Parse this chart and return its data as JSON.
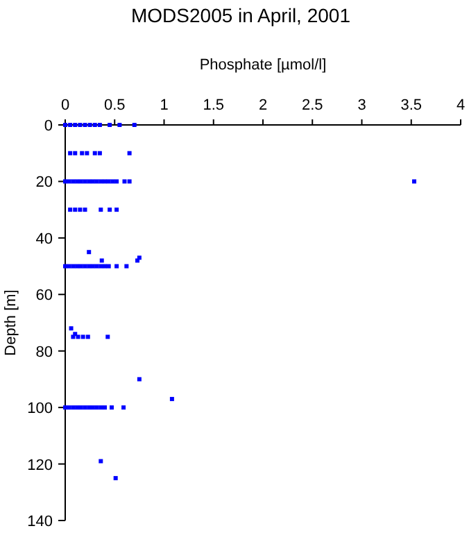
{
  "chart_data": {
    "type": "scatter",
    "title": "MODS2005 in April, 2001",
    "xlabel": "Phosphate [µmol/l]",
    "ylabel": "Depth [m]",
    "xlim": [
      0,
      4
    ],
    "xticks": [
      0,
      0.5,
      1,
      1.5,
      2,
      2.5,
      3,
      3.5,
      4
    ],
    "ylim": [
      140,
      0
    ],
    "yticks": [
      0,
      20,
      40,
      60,
      80,
      100,
      120,
      140
    ],
    "marker": "square",
    "grid": false,
    "series": [
      {
        "color": "#0000ff",
        "x": [
          0,
          0.05,
          0.1,
          0.15,
          0.2,
          0.25,
          0.3,
          0.35,
          0.45,
          0.55,
          0.7,
          0.05,
          0.1,
          0.17,
          0.22,
          0.3,
          0.35,
          0.65,
          0,
          0.04,
          0.08,
          0.12,
          0.16,
          0.2,
          0.24,
          0.28,
          0.32,
          0.36,
          0.4,
          0.44,
          0.48,
          0.52,
          0.6,
          0.65,
          3.53,
          0.05,
          0.1,
          0.15,
          0.2,
          0.36,
          0.45,
          0.52,
          0.24,
          0.37,
          0.73,
          0.75,
          0,
          0.04,
          0.08,
          0.12,
          0.16,
          0.2,
          0.24,
          0.28,
          0.32,
          0.36,
          0.4,
          0.44,
          0.52,
          0.62,
          0.06,
          0.1,
          0.08,
          0.13,
          0.18,
          0.23,
          0.43,
          0.75,
          1.08,
          0,
          0.04,
          0.08,
          0.12,
          0.16,
          0.2,
          0.24,
          0.28,
          0.32,
          0.36,
          0.4,
          0.47,
          0.59,
          0.36,
          0.51
        ],
        "values": [
          0,
          0,
          0,
          0,
          0,
          0,
          0,
          0,
          0,
          0,
          0,
          10,
          10,
          10,
          10,
          10,
          10,
          10,
          20,
          20,
          20,
          20,
          20,
          20,
          20,
          20,
          20,
          20,
          20,
          20,
          20,
          20,
          20,
          20,
          20,
          30,
          30,
          30,
          30,
          30,
          30,
          30,
          45,
          48,
          48,
          47,
          50,
          50,
          50,
          50,
          50,
          50,
          50,
          50,
          50,
          50,
          50,
          50,
          50,
          50,
          72,
          74,
          75,
          75,
          75,
          75,
          75,
          90,
          97,
          100,
          100,
          100,
          100,
          100,
          100,
          100,
          100,
          100,
          100,
          100,
          100,
          100,
          119,
          125
        ]
      }
    ]
  }
}
